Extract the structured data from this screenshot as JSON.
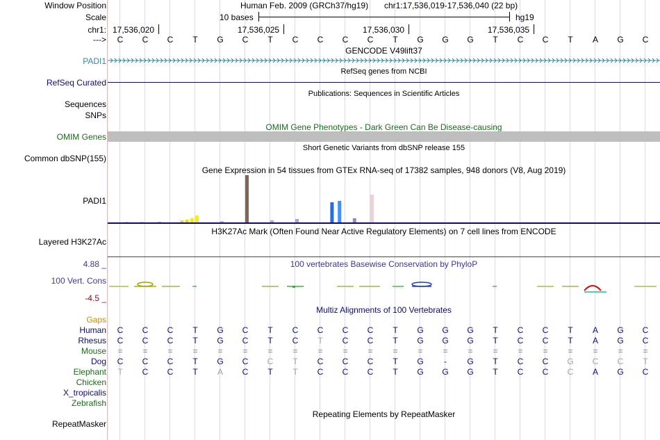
{
  "header": {
    "window_position_label": "Window Position",
    "assembly_text": "Human Feb. 2009 (GRCh37/hg19)",
    "position_text": "chr1:17,536,019-17,536,040 (22 bp)",
    "scale_label": "Scale",
    "scale_text": "10 bases",
    "scale_db": "hg19",
    "chrom_label": "chr1:",
    "coords": [
      "17,536,020",
      "17,536,025",
      "17,536,030",
      "17,536,035"
    ],
    "strand_label": "--->"
  },
  "sequence": [
    "C",
    "C",
    "C",
    "T",
    "G",
    "C",
    "T",
    "C",
    "C",
    "C",
    "C",
    "T",
    "G",
    "G",
    "G",
    "T",
    "C",
    "C",
    "T",
    "A",
    "G",
    "C"
  ],
  "tracks": {
    "gencode": {
      "title": "GENCODE V49lift37",
      "label": "PADI1",
      "color": "#2f8ba6"
    },
    "refseq": {
      "title": "RefSeq genes from NCBI",
      "label": "RefSeq Curated",
      "color": "#0c0c78"
    },
    "publications": {
      "title": "Publications: Sequences in Scientific Articles",
      "label": "Sequences"
    },
    "snps_label": "SNPs",
    "omim": {
      "title": "OMIM Gene Phenotypes - Dark Green Can Be Disease-causing",
      "label": "OMIM Genes",
      "color": "#1a6b1a"
    },
    "dbsnp": {
      "title": "Short Genetic Variants from dbSNP release 155",
      "label": "Common dbSNP(155)"
    },
    "gtex": {
      "title": "Gene Expression in 54 tissues from GTEx RNA-seq of 17382 samples, 948 donors (V8, Aug 2019)",
      "label": "PADI1"
    },
    "h3k27ac": {
      "title": "H3K27Ac Mark (Often Found Near Active Regulatory Elements) on 7 cell lines from ENCODE",
      "label": "Layered H3K27Ac"
    },
    "conservation": {
      "title": "100 vertebrates Basewise Conservation by PhyloP",
      "label": "100 Vert. Cons",
      "max": "4.88 _",
      "min": "-4.5 _"
    },
    "multiz": {
      "title": "Multiz Alignments of 100 Vertebrates"
    },
    "repeatmasker": {
      "title": "Repeating Elements by RepeatMasker",
      "label": "RepeatMasker"
    }
  },
  "gtex_bars": [
    {
      "pos": 0.7,
      "value": 1,
      "color": "#d0c8e0"
    },
    {
      "pos": 1.3,
      "value": 1,
      "color": "#d0c8e0"
    },
    {
      "pos": 2.0,
      "value": 1,
      "color": "#c8b0d0"
    },
    {
      "pos": 2.9,
      "value": 3,
      "color": "#e8e000"
    },
    {
      "pos": 3.1,
      "value": 4,
      "color": "#e8e000"
    },
    {
      "pos": 3.3,
      "value": 6,
      "color": "#f0f000"
    },
    {
      "pos": 3.5,
      "value": 10,
      "color": "#f4f400"
    },
    {
      "pos": 4.5,
      "value": 2,
      "color": "#d0b0d0"
    },
    {
      "pos": 5.5,
      "value": 69,
      "color": "#806850"
    },
    {
      "pos": 6.5,
      "value": 3,
      "color": "#d0a0a0"
    },
    {
      "pos": 7.5,
      "value": 5,
      "color": "#a8a8c0"
    },
    {
      "pos": 8.9,
      "value": 29,
      "color": "#2070e0"
    },
    {
      "pos": 9.2,
      "value": 31,
      "color": "#4090ff"
    },
    {
      "pos": 9.8,
      "value": 6,
      "color": "#9090a8"
    },
    {
      "pos": 10.5,
      "value": 40,
      "color": "#f0d0d0"
    }
  ],
  "alignment": {
    "gaps_label": "Gaps",
    "species": [
      {
        "name": "Human",
        "color": "#0c0c78",
        "bases": [
          "C",
          "C",
          "C",
          "T",
          "G",
          "C",
          "T",
          "C",
          "C",
          "C",
          "C",
          "T",
          "G",
          "G",
          "G",
          "T",
          "C",
          "C",
          "T",
          "A",
          "G",
          "C"
        ]
      },
      {
        "name": "Rhesus",
        "color": "#0c0c78",
        "bases": [
          "C",
          "C",
          "C",
          "T",
          "G",
          "C",
          "T",
          "C",
          "T",
          "C",
          "C",
          "T",
          "G",
          "G",
          "G",
          "T",
          "C",
          "C",
          "T",
          "A",
          "G",
          "C"
        ]
      },
      {
        "name": "Mouse",
        "color": "#1a6b1a",
        "bases": [
          "=",
          "=",
          "=",
          "=",
          "=",
          "=",
          "=",
          "=",
          "=",
          "=",
          "=",
          "=",
          "=",
          "=",
          "=",
          "=",
          "=",
          "=",
          "=",
          "=",
          "=",
          "="
        ]
      },
      {
        "name": "Dog",
        "color": "#0c0c78",
        "bases": [
          "C",
          "C",
          "C",
          "T",
          "G",
          "C",
          "C",
          "T",
          "C",
          "C",
          "C",
          "T",
          "G",
          "-",
          "G",
          "T",
          "C",
          "C",
          "G",
          "C",
          "C",
          "T"
        ]
      },
      {
        "name": "Elephant",
        "color": "#1a6b1a",
        "bases": [
          "T",
          "C",
          "C",
          "T",
          "A",
          "C",
          "T",
          "T",
          "C",
          "C",
          "C",
          "T",
          "G",
          "G",
          "G",
          "T",
          "C",
          "C",
          "C",
          "A",
          "G",
          "C"
        ]
      },
      {
        "name": "Chicken",
        "color": "#1a6b1a",
        "bases": []
      },
      {
        "name": "X_tropicalis",
        "color": "#0c0c78",
        "bases": []
      },
      {
        "name": "Zebrafish",
        "color": "#1a6b1a",
        "bases": []
      }
    ]
  },
  "colors": {
    "gap_label": "#d28c00",
    "cons_blue": "#3a3a9a",
    "cons_neg": "#8c1010"
  }
}
